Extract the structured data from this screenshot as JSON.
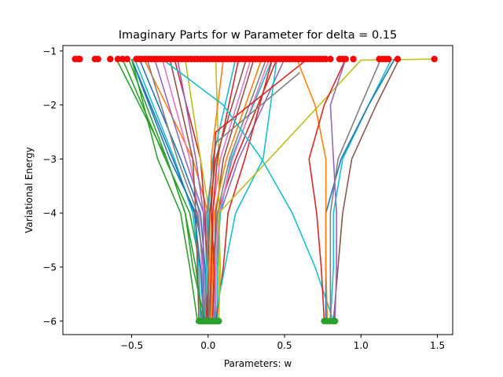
{
  "chart_data": {
    "type": "line",
    "title": "Imaginary Parts for w Parameter for delta = 0.15",
    "xlabel": "Parameters: w",
    "ylabel": "Variational Energy",
    "xlim": [
      -0.95,
      1.6
    ],
    "ylim": [
      -6.25,
      -0.9
    ],
    "xticks": [
      -0.5,
      0.0,
      0.5,
      1.0,
      1.5
    ],
    "xtick_labels": [
      "−0.5",
      "0.0",
      "0.5",
      "1.0",
      "1.5"
    ],
    "yticks": [
      -1,
      -2,
      -3,
      -4,
      -5,
      -6
    ],
    "ytick_labels": [
      "−1",
      "−2",
      "−3",
      "−4",
      "−5",
      "−6"
    ],
    "grid": false,
    "legend": "none",
    "start_marker": {
      "color": "#2ca02c",
      "y": -6.0
    },
    "end_marker": {
      "color": "#ff0000",
      "y": -1.15
    },
    "series": [
      {
        "color": "#1f77b4",
        "x": [
          -0.01,
          -0.02,
          -0.08,
          -0.25,
          -0.5
        ],
        "y": [
          -6.0,
          -5.0,
          -4.0,
          -3.0,
          -1.15
        ]
      },
      {
        "color": "#ff7f0e",
        "x": [
          0.0,
          0.01,
          0.0,
          -0.1,
          -0.42
        ],
        "y": [
          -6.0,
          -5.0,
          -4.0,
          -3.0,
          -1.15
        ]
      },
      {
        "color": "#2ca02c",
        "x": [
          -0.02,
          -0.05,
          -0.12,
          -0.28,
          -0.56
        ],
        "y": [
          -6.0,
          -5.0,
          -4.0,
          -3.0,
          -1.15
        ]
      },
      {
        "color": "#d62728",
        "x": [
          0.02,
          0.03,
          0.06,
          0.18,
          0.45
        ],
        "y": [
          -6.0,
          -5.0,
          -4.0,
          -3.0,
          -1.15
        ]
      },
      {
        "color": "#9467bd",
        "x": [
          0.01,
          0.0,
          -0.03,
          -0.15,
          -0.35
        ],
        "y": [
          -6.0,
          -5.0,
          -4.0,
          -3.0,
          -1.15
        ]
      },
      {
        "color": "#8c564b",
        "x": [
          0.03,
          0.04,
          0.05,
          0.1,
          0.3
        ],
        "y": [
          -6.0,
          -5.0,
          -4.0,
          -3.0,
          -1.15
        ]
      },
      {
        "color": "#e377c2",
        "x": [
          -0.03,
          -0.04,
          -0.06,
          -0.12,
          -0.3
        ],
        "y": [
          -6.0,
          -5.0,
          -4.0,
          -3.0,
          -1.15
        ]
      },
      {
        "color": "#7f7f7f",
        "x": [
          0.05,
          0.04,
          0.06,
          0.14,
          0.38
        ],
        "y": [
          -6.0,
          -5.0,
          -4.0,
          -3.0,
          -1.15
        ]
      },
      {
        "color": "#bcbd22",
        "x": [
          0.07,
          0.07,
          0.07,
          0.07,
          0.05
        ],
        "y": [
          -6.0,
          -5.0,
          -4.0,
          -3.0,
          -1.15
        ]
      },
      {
        "color": "#17becf",
        "x": [
          -0.05,
          -0.06,
          -0.1,
          -0.22,
          -0.48
        ],
        "y": [
          -6.0,
          -5.0,
          -4.0,
          -3.0,
          -1.15
        ]
      },
      {
        "color": "#1f77b4",
        "x": [
          0.0,
          -0.02,
          -0.05,
          -0.18,
          -0.45
        ],
        "y": [
          -6.0,
          -5.0,
          -4.0,
          -3.0,
          -1.15
        ]
      },
      {
        "color": "#ff7f0e",
        "x": [
          0.02,
          0.02,
          0.04,
          0.12,
          0.35
        ],
        "y": [
          -6.0,
          -5.0,
          -4.0,
          -3.0,
          -1.15
        ]
      },
      {
        "color": "#2ca02c",
        "x": [
          -0.04,
          -0.08,
          -0.15,
          -0.27,
          -0.52
        ],
        "y": [
          -6.0,
          -5.0,
          -4.0,
          -3.0,
          -1.15
        ]
      },
      {
        "color": "#d62728",
        "x": [
          -0.01,
          -0.01,
          -0.02,
          -0.05,
          -0.22
        ],
        "y": [
          -6.0,
          -5.0,
          -4.0,
          -3.0,
          -1.15
        ]
      },
      {
        "color": "#9467bd",
        "x": [
          0.04,
          0.05,
          0.08,
          0.2,
          0.5
        ],
        "y": [
          -6.0,
          -5.0,
          -4.0,
          -3.0,
          -1.15
        ]
      },
      {
        "color": "#8c564b",
        "x": [
          -0.06,
          -0.07,
          -0.08,
          -0.1,
          -0.25
        ],
        "y": [
          -6.0,
          -5.0,
          -4.0,
          -3.0,
          -1.15
        ]
      },
      {
        "color": "#e377c2",
        "x": [
          0.01,
          0.02,
          0.03,
          0.08,
          0.28
        ],
        "y": [
          -6.0,
          -5.0,
          -4.0,
          -3.0,
          -1.15
        ]
      },
      {
        "color": "#7f7f7f",
        "x": [
          -0.02,
          -0.03,
          -0.07,
          -0.2,
          -0.4
        ],
        "y": [
          -6.0,
          -5.0,
          -4.0,
          -3.0,
          -1.15
        ]
      },
      {
        "color": "#bcbd22",
        "x": [
          0.03,
          0.02,
          0.01,
          -0.05,
          -0.15
        ],
        "y": [
          -6.0,
          -5.0,
          -4.0,
          -3.0,
          -1.15
        ]
      },
      {
        "color": "#17becf",
        "x": [
          0.06,
          0.06,
          0.08,
          0.15,
          0.42
        ],
        "y": [
          -6.0,
          -5.0,
          -4.0,
          -3.0,
          -1.15
        ]
      },
      {
        "color": "#1f77b4",
        "x": [
          -0.03,
          -0.05,
          -0.09,
          -0.23,
          -0.5
        ],
        "y": [
          -6.0,
          -5.0,
          -4.0,
          -3.0,
          -1.15
        ]
      },
      {
        "color": "#ff7f0e",
        "x": [
          0.02,
          0.03,
          0.02,
          0.02,
          0.1
        ],
        "y": [
          -6.0,
          -5.0,
          -4.0,
          -3.0,
          -1.15
        ]
      },
      {
        "color": "#d62728",
        "x": [
          0.01,
          0.02,
          0.03,
          0.06,
          0.2
        ],
        "y": [
          -6.0,
          -5.0,
          -4.0,
          -3.0,
          -1.15
        ]
      },
      {
        "color": "#9467bd",
        "x": [
          -0.04,
          -0.03,
          -0.03,
          -0.08,
          -0.2
        ],
        "y": [
          -6.0,
          -5.0,
          -4.0,
          -3.0,
          -1.15
        ]
      },
      {
        "color": "#2ca02c",
        "x": [
          -0.07,
          -0.12,
          -0.18,
          -0.33,
          -0.5
        ],
        "y": [
          -6.0,
          -5.0,
          -4.0,
          -3.0,
          -1.15
        ]
      },
      {
        "color": "#8c564b",
        "x": [
          0.0,
          0.0,
          0.01,
          0.05,
          0.25
        ],
        "y": [
          -6.0,
          -5.0,
          -4.0,
          -3.0,
          -1.15
        ]
      },
      {
        "color": "#e377c2",
        "x": [
          0.05,
          0.05,
          0.07,
          0.16,
          0.4
        ],
        "y": [
          -6.0,
          -5.0,
          -4.0,
          -3.0,
          -1.15
        ]
      },
      {
        "color": "#17becf",
        "x": [
          -0.02,
          -0.01,
          0.0,
          0.03,
          0.18
        ],
        "y": [
          -6.0,
          -5.0,
          -4.0,
          -3.0,
          -1.15
        ]
      },
      {
        "color": "#2ca02c",
        "x": [
          -0.02,
          -0.1,
          -0.15,
          -0.27,
          -0.6
        ],
        "y": [
          -6.0,
          -5.0,
          -4.0,
          -3.0,
          -1.15
        ]
      },
      {
        "color": "#d62728",
        "x": [
          0.05,
          0.1,
          0.13,
          0.24,
          0.42
        ],
        "y": [
          -6.0,
          -5.0,
          -4.0,
          -3.0,
          -1.15
        ]
      },
      {
        "color": "#17becf",
        "x": [
          0.04,
          0.11,
          0.18,
          0.36,
          0.45
        ],
        "y": [
          -6.0,
          -5.0,
          -4.0,
          -3.0,
          -1.15
        ]
      },
      {
        "color": "#7f7f7f",
        "x": [
          0.01,
          0.0,
          -0.01,
          0.05,
          0.6
        ],
        "y": [
          -6.0,
          -5.0,
          -4.0,
          -2.7,
          -1.4
        ]
      },
      {
        "color": "#d62728",
        "x": [
          0.03,
          0.04,
          0.02,
          0.05,
          0.65
        ],
        "y": [
          -6.0,
          -5.0,
          -4.0,
          -2.5,
          -1.15
        ]
      },
      {
        "color": "#bcbd22",
        "x": [
          0.07,
          0.08,
          0.07,
          0.4,
          1.0,
          1.48
        ],
        "y": [
          -6.0,
          -5.0,
          -4.0,
          -3.0,
          -1.17,
          -1.15
        ]
      },
      {
        "color": "#17becf",
        "x": [
          0.82,
          0.7,
          0.55,
          0.35,
          0.1,
          -0.3
        ],
        "y": [
          -6.0,
          -5.0,
          -4.0,
          -3.0,
          -2.0,
          -1.15
        ]
      },
      {
        "color": "#17becf",
        "x": [
          0.8,
          0.82,
          0.82,
          0.88,
          1.05,
          1.2
        ],
        "y": [
          -6.0,
          -5.0,
          -4.0,
          -3.0,
          -2.0,
          -1.15
        ]
      },
      {
        "color": "#1f77b4",
        "x": [
          0.77,
          0.77,
          0.77,
          0.87,
          1.05,
          1.22
        ],
        "y": [
          -6.0,
          -5.0,
          -4.0,
          -3.0,
          -2.0,
          -1.15
        ]
      },
      {
        "color": "#7f7f7f",
        "x": [
          0.8,
          0.8,
          0.8,
          0.85,
          1.0,
          1.13
        ],
        "y": [
          -6.0,
          -5.0,
          -4.0,
          -3.0,
          -2.0,
          -1.15
        ]
      },
      {
        "color": "#8c564b",
        "x": [
          0.82,
          0.85,
          0.88,
          0.94,
          1.1,
          1.25
        ],
        "y": [
          -6.0,
          -5.0,
          -4.0,
          -3.0,
          -2.0,
          -1.15
        ]
      },
      {
        "color": "#ff7f0e",
        "x": [
          0.78,
          0.77,
          0.77,
          0.77,
          0.7,
          0.58
        ],
        "y": [
          -6.0,
          -5.0,
          -4.0,
          -3.0,
          -2.0,
          -1.15
        ]
      },
      {
        "color": "#d62728",
        "x": [
          0.76,
          0.74,
          0.71,
          0.66,
          0.76,
          0.9
        ],
        "y": [
          -6.0,
          -5.0,
          -4.0,
          -3.0,
          -2.0,
          -1.15
        ]
      },
      {
        "color": "#9467bd",
        "x": [
          0.83,
          0.84,
          0.84,
          0.82,
          0.8,
          0.9
        ],
        "y": [
          -6.0,
          -5.0,
          -4.0,
          -3.0,
          -2.0,
          -1.15
        ]
      }
    ],
    "scatter_end": {
      "x": [
        -0.87,
        -0.85,
        -0.84,
        -0.74,
        -0.72,
        -0.64,
        -0.59,
        -0.56,
        -0.53,
        -0.47,
        -0.45,
        -0.43,
        -0.41,
        -0.39,
        -0.37,
        -0.35,
        -0.33,
        -0.31,
        -0.29,
        -0.27,
        -0.25,
        -0.23,
        -0.21,
        -0.19,
        -0.17,
        -0.15,
        -0.13,
        -0.11,
        -0.09,
        -0.07,
        -0.05,
        -0.03,
        -0.01,
        0.01,
        0.03,
        0.05,
        0.07,
        0.09,
        0.11,
        0.13,
        0.15,
        0.17,
        0.19,
        0.21,
        0.23,
        0.25,
        0.27,
        0.29,
        0.31,
        0.33,
        0.35,
        0.37,
        0.39,
        0.41,
        0.43,
        0.45,
        0.47,
        0.49,
        0.51,
        0.53,
        0.55,
        0.57,
        0.59,
        0.61,
        0.63,
        0.65,
        0.67,
        0.69,
        0.71,
        0.73,
        0.75,
        0.77,
        0.8,
        0.86,
        0.88,
        0.9,
        0.95,
        1.12,
        1.14,
        1.16,
        1.18,
        1.24,
        1.48
      ]
    },
    "scatter_start": {
      "x": [
        -0.06,
        -0.05,
        -0.04,
        -0.03,
        -0.02,
        -0.01,
        0.0,
        0.01,
        0.02,
        0.03,
        0.04,
        0.05,
        0.06,
        0.07,
        0.76,
        0.78,
        0.8,
        0.82,
        0.83
      ]
    }
  }
}
